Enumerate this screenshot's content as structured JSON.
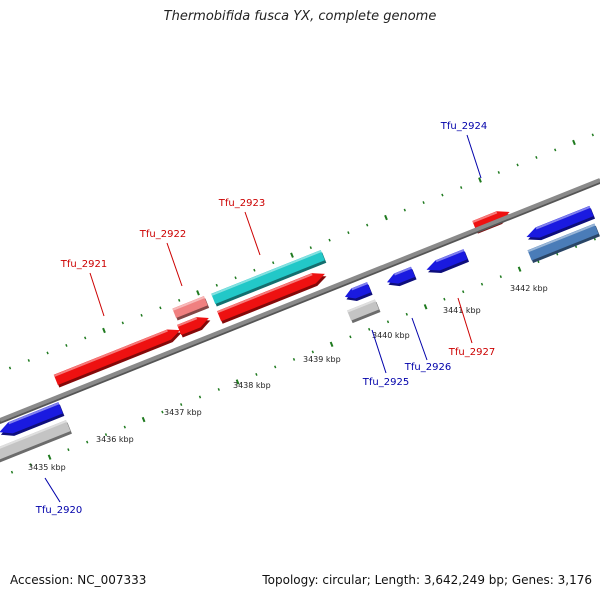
{
  "title": "Thermobifida fusca YX, complete genome",
  "footer": {
    "accession": "Accession: NC_007333",
    "summary": "Topology: circular; Length: 3,642,249 bp; Genes: 3,176"
  },
  "map": {
    "scale_labels": [
      "3435 kbp",
      "3436 kbp",
      "3437 kbp",
      "3438 kbp",
      "3439 kbp",
      "3440 kbp",
      "3441 kbp",
      "3442 kbp"
    ],
    "colors": {
      "backbone": "#8a8a8a",
      "tick": "#1f7a1f",
      "forward_label": "#cc0000",
      "reverse_label": "#0000aa",
      "red": "#ee1111",
      "light_red": "#f08080",
      "cyan": "#22c8c8",
      "blue": "#1a1ae0",
      "gray": "#c4c4c4",
      "steel": "#4a7cb8"
    },
    "genes": [
      {
        "label": "Tfu_2920",
        "strand": "reverse"
      },
      {
        "label": "Tfu_2921",
        "strand": "forward"
      },
      {
        "label": "Tfu_2922",
        "strand": "forward"
      },
      {
        "label": "Tfu_2923",
        "strand": "forward"
      },
      {
        "label": "Tfu_2924",
        "strand": "reverse"
      },
      {
        "label": "Tfu_2925",
        "strand": "reverse"
      },
      {
        "label": "Tfu_2926",
        "strand": "reverse"
      },
      {
        "label": "Tfu_2927",
        "strand": "forward"
      }
    ]
  }
}
